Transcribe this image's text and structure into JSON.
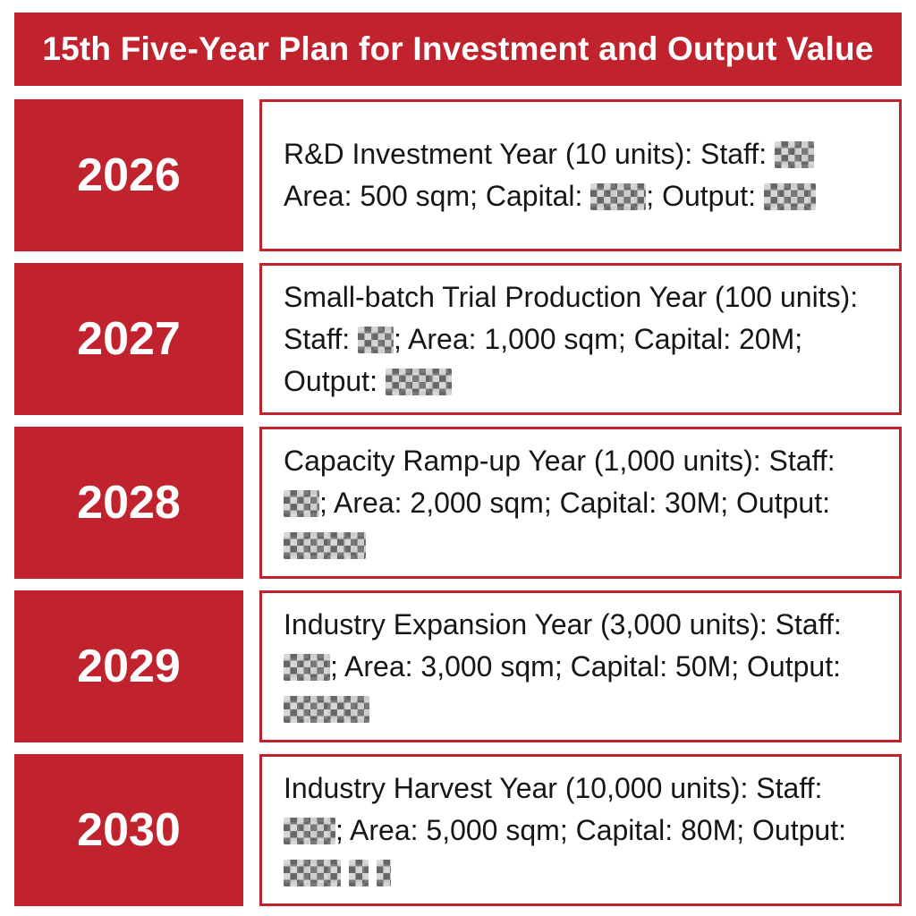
{
  "header": {
    "title": "15th Five-Year Plan for Investment and Output Value"
  },
  "colors": {
    "primary_red": "#c0232d",
    "text": "#161616",
    "background": "#ffffff",
    "redaction_dark": "#8a8a8a",
    "redaction_light": "#d9d9d9"
  },
  "rows": [
    {
      "year": "2026",
      "segments": [
        {
          "text": "R&D Investment Year (10 units): Staff: "
        },
        {
          "redacted": 44
        },
        {
          "text": " Area: 500 sqm; Capital: "
        },
        {
          "redacted": 62
        },
        {
          "text": "; Output: "
        },
        {
          "redacted": 58
        }
      ]
    },
    {
      "year": "2027",
      "segments": [
        {
          "text": "Small-batch Trial Production Year (100 units): Staff: "
        },
        {
          "redacted": 40
        },
        {
          "text": "; Area: 1,000 sqm; Capital: 20M; Output: "
        },
        {
          "redacted": 74
        }
      ]
    },
    {
      "year": "2028",
      "segments": [
        {
          "text": "Capacity Ramp-up Year (1,000 units): Staff: "
        },
        {
          "redacted": 40
        },
        {
          "text": "; Area: 2,000 sqm; Capital: 30M; Output: "
        },
        {
          "redacted": 92
        }
      ]
    },
    {
      "year": "2029",
      "segments": [
        {
          "text": "Industry Expansion Year (3,000 units): Staff: "
        },
        {
          "redacted": 52
        },
        {
          "text": "; Area: 3,000 sqm; Capital: 50M; Output: "
        },
        {
          "redacted": 96
        }
      ]
    },
    {
      "year": "2030",
      "segments": [
        {
          "text": "Industry Harvest Year (10,000 units): Staff: "
        },
        {
          "redacted": 58
        },
        {
          "text": "; Area: 5,000 sqm; Capital: 80M; Output: "
        },
        {
          "redacted": 64
        },
        {
          "text": " "
        },
        {
          "redacted": 22
        },
        {
          "text": " "
        },
        {
          "redacted": 16
        }
      ]
    }
  ]
}
